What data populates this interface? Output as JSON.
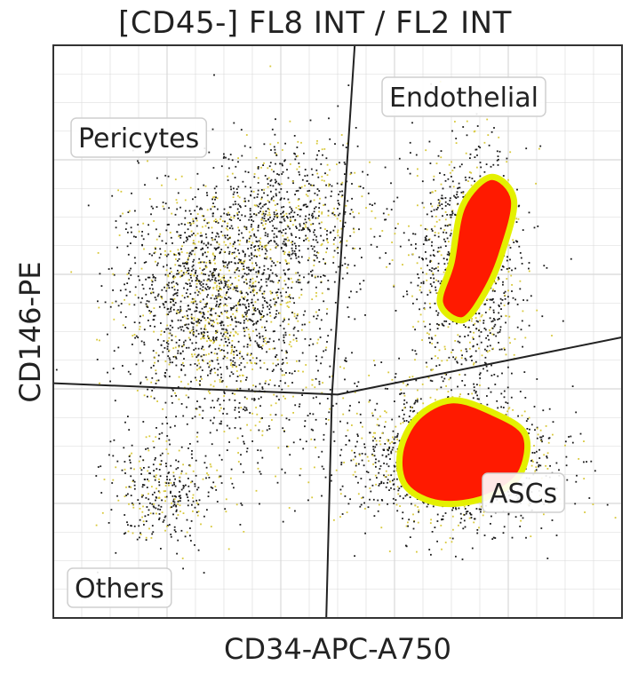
{
  "chart_data": {
    "type": "scatter",
    "title": "[CD45-] FL8 INT / FL2 INT",
    "xlabel": "CD34-APC-A750",
    "ylabel": "CD146-PE",
    "xlim": [
      0,
      100
    ],
    "ylim": [
      0,
      100
    ],
    "grid": true,
    "regions": [
      {
        "label": "Pericytes"
      },
      {
        "label": "Endothelial"
      },
      {
        "label": "ASCs"
      },
      {
        "label": "Others"
      }
    ],
    "clusters": [
      {
        "cx": 27,
        "cy": 57,
        "sx": 8,
        "sy": 9,
        "n": 1500
      },
      {
        "cx": 42,
        "cy": 70,
        "sx": 7,
        "sy": 7,
        "n": 700
      },
      {
        "cx": 19,
        "cy": 22,
        "sx": 5,
        "sy": 5,
        "n": 350
      },
      {
        "cx": 36,
        "cy": 42,
        "sx": 9,
        "sy": 10,
        "n": 500
      },
      {
        "cx": 73,
        "cy": 62,
        "sx": 5,
        "sy": 10,
        "n": 1100
      },
      {
        "cx": 70,
        "cy": 28,
        "sx": 9,
        "sy": 6,
        "n": 1500
      }
    ],
    "dense_regions": [
      {
        "points": [
          [
            68,
            55
          ],
          [
            70,
            62
          ],
          [
            72,
            72
          ],
          [
            77,
            77
          ],
          [
            81,
            73
          ],
          [
            79,
            64
          ],
          [
            76,
            57
          ],
          [
            72,
            52
          ]
        ]
      },
      {
        "points": [
          [
            62,
            23
          ],
          [
            61,
            29
          ],
          [
            64,
            35
          ],
          [
            70,
            38
          ],
          [
            77,
            36
          ],
          [
            83,
            32
          ],
          [
            82,
            25
          ],
          [
            76,
            21
          ],
          [
            68,
            20
          ]
        ]
      }
    ],
    "gate_lines": [
      {
        "points": [
          [
            0,
            41
          ],
          [
            50,
            39
          ],
          [
            100,
            49
          ]
        ]
      },
      {
        "points": [
          [
            53,
            100
          ],
          [
            49,
            39
          ],
          [
            48,
            0
          ]
        ]
      }
    ],
    "colors": {
      "dots": "#1a1a1a",
      "dots_alt": "#d8c83a",
      "dense_fill": "#ff1a00",
      "contour": "#e4f000",
      "grid": "#d8d8d8"
    }
  }
}
